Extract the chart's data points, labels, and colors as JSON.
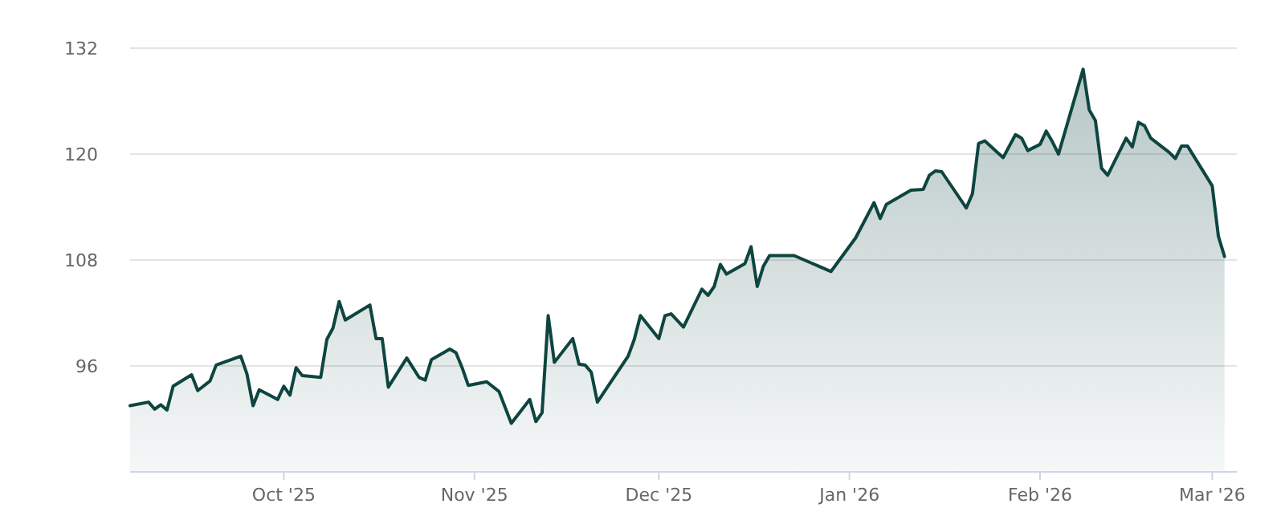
{
  "chart_data": {
    "type": "area",
    "x": [
      "2025-09-06",
      "2025-09-09",
      "2025-09-10",
      "2025-09-11",
      "2025-09-12",
      "2025-09-13",
      "2025-09-16",
      "2025-09-17",
      "2025-09-19",
      "2025-09-20",
      "2025-09-24",
      "2025-09-25",
      "2025-09-26",
      "2025-09-27",
      "2025-09-30",
      "2025-10-01",
      "2025-10-02",
      "2025-10-03",
      "2025-10-04",
      "2025-10-07",
      "2025-10-08",
      "2025-10-09",
      "2025-10-10",
      "2025-10-11",
      "2025-10-15",
      "2025-10-16",
      "2025-10-17",
      "2025-10-18",
      "2025-10-21",
      "2025-10-23",
      "2025-10-24",
      "2025-10-25",
      "2025-10-28",
      "2025-10-29",
      "2025-10-30",
      "2025-10-31",
      "2025-11-03",
      "2025-11-05",
      "2025-11-07",
      "2025-11-10",
      "2025-11-11",
      "2025-11-12",
      "2025-11-13",
      "2025-11-14",
      "2025-11-17",
      "2025-11-18",
      "2025-11-19",
      "2025-11-20",
      "2025-11-21",
      "2025-11-26",
      "2025-11-27",
      "2025-11-28",
      "2025-12-01",
      "2025-12-02",
      "2025-12-03",
      "2025-12-05",
      "2025-12-08",
      "2025-12-09",
      "2025-12-10",
      "2025-12-11",
      "2025-12-12",
      "2025-12-15",
      "2025-12-16",
      "2025-12-17",
      "2025-12-18",
      "2025-12-19",
      "2025-12-23",
      "2025-12-29",
      "2026-01-02",
      "2026-01-05",
      "2026-01-06",
      "2026-01-07",
      "2026-01-11",
      "2026-01-13",
      "2026-01-14",
      "2026-01-15",
      "2026-01-16",
      "2026-01-20",
      "2026-01-21",
      "2026-01-22",
      "2026-01-23",
      "2026-01-26",
      "2026-01-28",
      "2026-01-29",
      "2026-01-30",
      "2026-02-01",
      "2026-02-02",
      "2026-02-03",
      "2026-02-04",
      "2026-02-08",
      "2026-02-09",
      "2026-02-10",
      "2026-02-11",
      "2026-02-12",
      "2026-02-15",
      "2026-02-16",
      "2026-02-17",
      "2026-02-18",
      "2026-02-19",
      "2026-02-22",
      "2026-02-23",
      "2026-02-24",
      "2026-02-25",
      "2026-03-01",
      "2026-03-02",
      "2026-03-03"
    ],
    "series": [
      {
        "color": "#0e4540",
        "values": [
          91.5,
          91.9,
          91.1,
          91.6,
          91.0,
          93.7,
          95.0,
          93.2,
          94.3,
          96.1,
          97.1,
          95.1,
          91.5,
          93.3,
          92.2,
          93.7,
          92.7,
          95.8,
          94.9,
          94.7,
          99.0,
          100.3,
          103.3,
          101.2,
          102.9,
          99.1,
          99.1,
          93.6,
          96.9,
          94.7,
          94.4,
          96.7,
          97.9,
          97.5,
          95.8,
          93.8,
          94.2,
          93.1,
          89.5,
          92.2,
          89.7,
          90.7,
          101.7,
          96.4,
          99.1,
          96.2,
          96.1,
          95.3,
          91.9,
          97.1,
          99.0,
          101.7,
          99.1,
          101.7,
          101.9,
          100.4,
          104.7,
          104.0,
          105.0,
          107.5,
          106.4,
          107.6,
          109.5,
          105.0,
          107.3,
          108.5,
          108.5,
          106.7,
          110.5,
          114.5,
          112.7,
          114.3,
          115.9,
          116.0,
          117.6,
          118.1,
          118.0,
          113.9,
          115.5,
          121.2,
          121.5,
          119.6,
          122.2,
          121.8,
          120.4,
          121.1,
          122.6,
          121.4,
          120.0,
          129.6,
          125.0,
          123.8,
          118.4,
          117.6,
          121.8,
          120.8,
          123.6,
          123.2,
          121.8,
          120.2,
          119.5,
          120.9,
          120.9,
          116.4,
          110.7,
          108.4
        ]
      }
    ],
    "xlim": [
      "2025-09-06",
      "2026-03-05"
    ],
    "xticks": [
      {
        "value": "2025-10-01",
        "label": "Oct '25"
      },
      {
        "value": "2025-11-01",
        "label": "Nov '25"
      },
      {
        "value": "2025-12-01",
        "label": "Dec '25"
      },
      {
        "value": "2026-01-01",
        "label": "Jan '26"
      },
      {
        "value": "2026-02-01",
        "label": "Feb '26"
      },
      {
        "value": "2026-03-01",
        "label": "Mar '26"
      }
    ],
    "ylim": [
      84,
      132
    ],
    "yticks": [
      96,
      108,
      120,
      132
    ],
    "grid": "y"
  }
}
